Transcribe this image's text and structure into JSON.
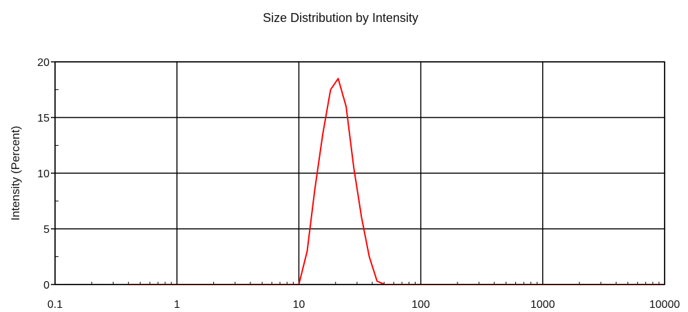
{
  "chart_data": {
    "type": "line",
    "title": "Size Distribution by Intensity",
    "xlabel": "",
    "ylabel": "Intensity (Percent)",
    "x_scale": "log",
    "xlim": [
      0.1,
      10000
    ],
    "ylim": [
      0,
      20
    ],
    "x_ticks": [
      {
        "value": 0.1,
        "label": "0.1"
      },
      {
        "value": 1,
        "label": "1"
      },
      {
        "value": 10,
        "label": "10"
      },
      {
        "value": 100,
        "label": "100"
      },
      {
        "value": 1000,
        "label": "1000"
      },
      {
        "value": 10000,
        "label": "10000"
      }
    ],
    "y_ticks": [
      {
        "value": 0,
        "label": "0"
      },
      {
        "value": 5,
        "label": "5"
      },
      {
        "value": 10,
        "label": "10"
      },
      {
        "value": 15,
        "label": "15"
      },
      {
        "value": 20,
        "label": "20"
      }
    ],
    "grid": true,
    "series": [
      {
        "color": "#ff0000",
        "points": [
          [
            0.4,
            0.0
          ],
          [
            0.6,
            0.0
          ],
          [
            1.0,
            0.0
          ],
          [
            2.0,
            0.0
          ],
          [
            4.0,
            0.0
          ],
          [
            7.0,
            0.0
          ],
          [
            10.0,
            0.0
          ],
          [
            11.7,
            3.0
          ],
          [
            13.5,
            8.5
          ],
          [
            15.7,
            13.5
          ],
          [
            18.2,
            17.5
          ],
          [
            21.0,
            18.5
          ],
          [
            24.4,
            16.0
          ],
          [
            28.2,
            10.5
          ],
          [
            32.7,
            6.0
          ],
          [
            37.8,
            2.5
          ],
          [
            43.8,
            0.3
          ],
          [
            50.7,
            0.0
          ],
          [
            70.0,
            0.0
          ],
          [
            100.0,
            0.0
          ],
          [
            300.0,
            0.0
          ],
          [
            1000.0,
            0.0
          ],
          [
            3000.0,
            0.0
          ],
          [
            10000.0,
            0.0
          ]
        ]
      }
    ]
  }
}
